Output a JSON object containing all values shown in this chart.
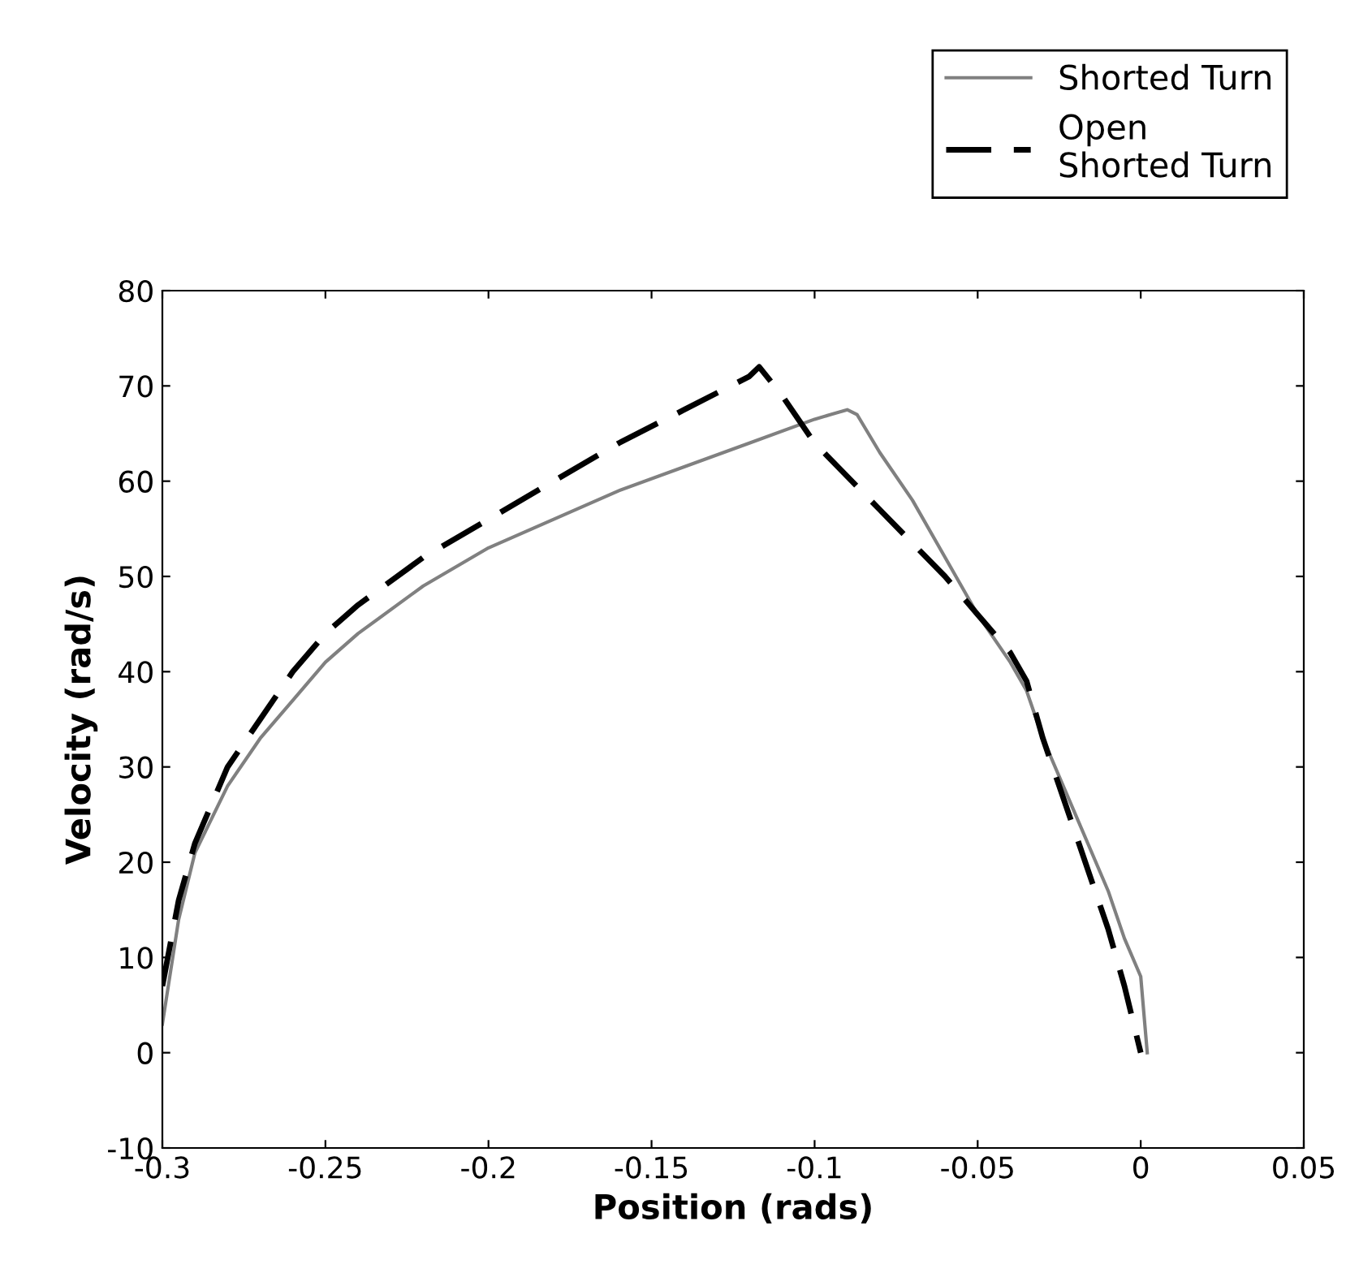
{
  "chart_data": {
    "type": "line",
    "xlabel": "Position (rads)",
    "ylabel": "Velocity (rad/s)",
    "xlim": [
      -0.3,
      0.05
    ],
    "xticks": [
      -0.3,
      -0.25,
      -0.2,
      -0.15,
      -0.1,
      -0.05,
      0,
      0.05
    ],
    "ylim": [
      -10,
      80
    ],
    "yticks": [
      -10,
      0,
      10,
      20,
      30,
      40,
      50,
      60,
      70,
      80
    ],
    "grid": false,
    "legend": "top right",
    "marker": "none",
    "series": [
      {
        "name": "Shorted Turn",
        "color": "#808080",
        "line_style": "solid",
        "x": [
          -0.3,
          -0.295,
          -0.29,
          -0.28,
          -0.27,
          -0.26,
          -0.25,
          -0.24,
          -0.22,
          -0.2,
          -0.18,
          -0.16,
          -0.14,
          -0.12,
          -0.1,
          -0.095,
          -0.09,
          -0.087,
          -0.08,
          -0.07,
          -0.06,
          -0.05,
          -0.04,
          -0.035,
          -0.03,
          -0.02,
          -0.01,
          -0.005,
          0,
          0.002
        ],
        "values": [
          3,
          14,
          21,
          28,
          33,
          37,
          41,
          44,
          49,
          53,
          56,
          59,
          61.5,
          64,
          66.5,
          67,
          67.5,
          67,
          63,
          58,
          52,
          46,
          41,
          38,
          33,
          25,
          17,
          12,
          8,
          0
        ]
      },
      {
        "name": "Open\nShorted Turn",
        "color": "#000000",
        "line_style": "dashed",
        "x": [
          -0.3,
          -0.295,
          -0.29,
          -0.28,
          -0.27,
          -0.26,
          -0.25,
          -0.24,
          -0.22,
          -0.2,
          -0.18,
          -0.16,
          -0.14,
          -0.12,
          -0.117,
          -0.11,
          -0.1,
          -0.08,
          -0.06,
          -0.05,
          -0.04,
          -0.035,
          -0.03,
          -0.02,
          -0.01,
          -0.005,
          0
        ],
        "values": [
          7,
          16,
          22,
          30,
          35,
          40,
          44,
          47,
          52,
          56,
          60,
          64,
          67.5,
          71,
          72,
          69,
          64,
          57,
          50,
          46,
          42,
          39,
          33,
          23,
          13,
          7,
          0
        ]
      }
    ]
  }
}
